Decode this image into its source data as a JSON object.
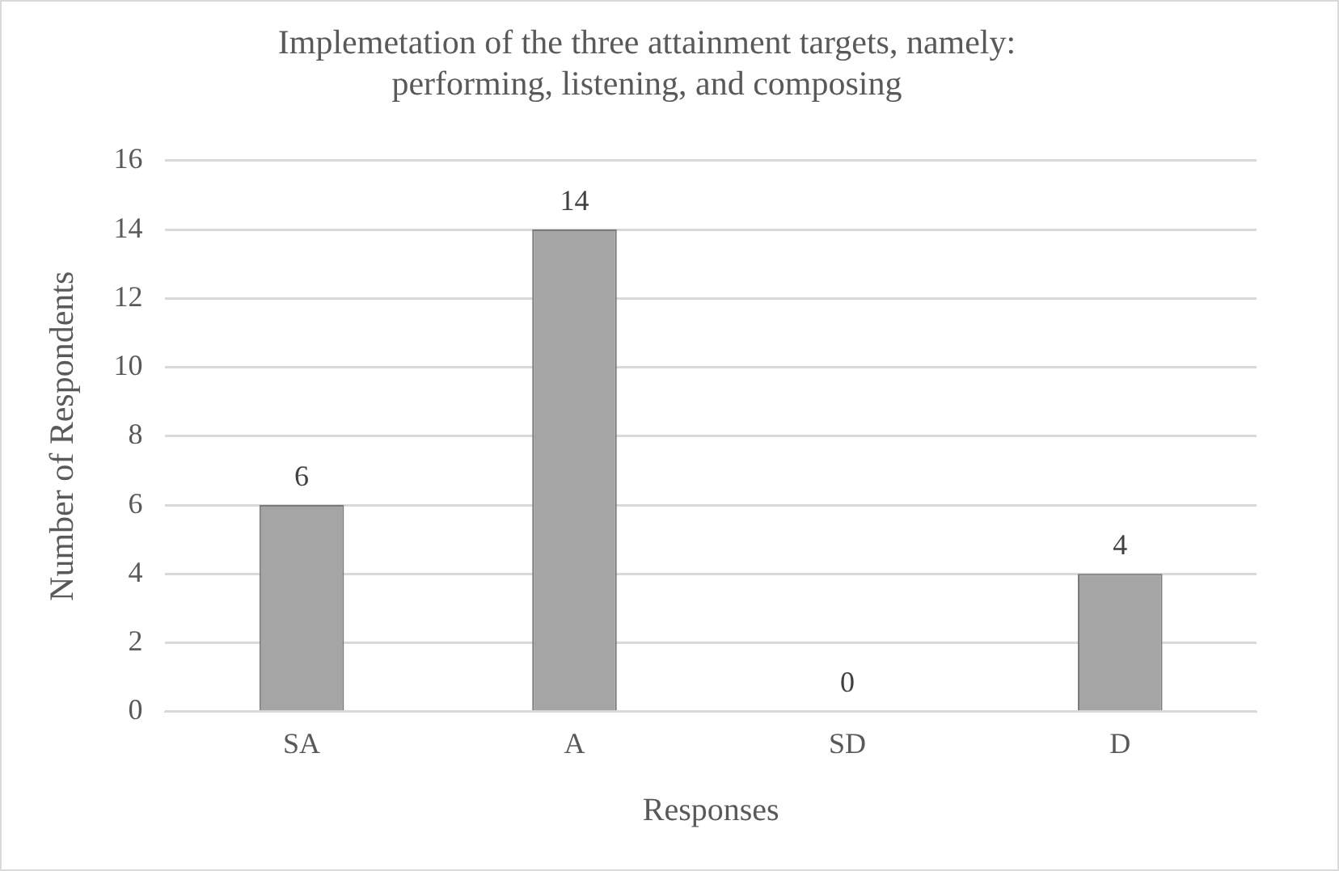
{
  "chart_data": {
    "type": "bar",
    "title": "Implemetation of the three attainment targets, namely: performing, listening, and composing",
    "xlabel": "Responses",
    "ylabel": "Number of Respondents",
    "categories": [
      "SA",
      "A",
      "SD",
      "D"
    ],
    "values": [
      6,
      14,
      0,
      4
    ],
    "color": "#a5a5a5",
    "ylim": [
      0,
      16
    ],
    "yticks": [
      0,
      2,
      4,
      6,
      8,
      10,
      12,
      14,
      16
    ],
    "grid": "y",
    "data_labels": true
  }
}
